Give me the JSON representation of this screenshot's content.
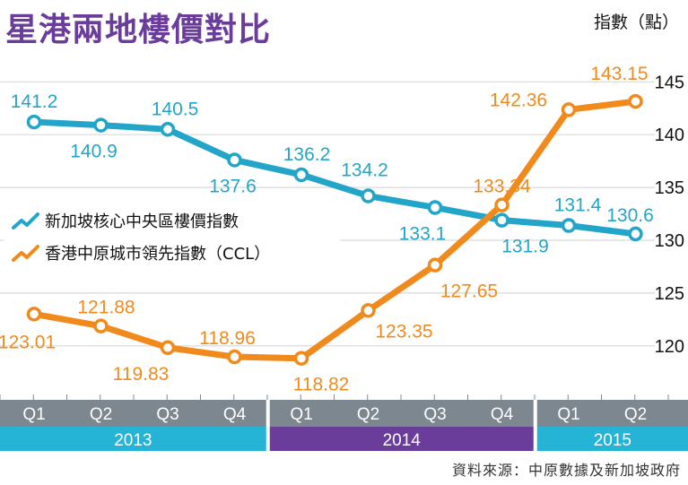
{
  "title": "星港兩地樓價對比",
  "unit_label": "指數（點）",
  "source": "資料來源：中原數據及新加坡政府",
  "colors": {
    "sg": "#22a5c9",
    "hk": "#f08a1d",
    "title": "#6a3d9a",
    "grid": "#d9d9d9",
    "quarter_bar": "#7d878f",
    "year_2013": "#25b4d6",
    "year_2014": "#6a3d9a",
    "year_2015": "#25b4d6"
  },
  "chart_data": {
    "type": "line",
    "categories": [
      "Q1",
      "Q2",
      "Q3",
      "Q4",
      "Q1",
      "Q2",
      "Q3",
      "Q4",
      "Q1",
      "Q2"
    ],
    "years": [
      {
        "label": "2013",
        "quarters": 4
      },
      {
        "label": "2014",
        "quarters": 4
      },
      {
        "label": "2015",
        "quarters": 2
      }
    ],
    "ylabel": "指數（點）",
    "ylim": [
      115,
      147
    ],
    "yticks": [
      120,
      125,
      130,
      135,
      140,
      145
    ],
    "grid": true,
    "legend_position": "left",
    "series": [
      {
        "name": "新加坡核心中央區樓價指數",
        "color": "#22a5c9",
        "values": [
          141.2,
          140.9,
          140.5,
          137.6,
          136.2,
          134.2,
          133.1,
          131.9,
          131.4,
          130.6
        ],
        "labels": [
          "141.2",
          "140.9",
          "140.5",
          "137.6",
          "136.2",
          "134.2",
          "133.1",
          "131.9",
          "131.4",
          "130.6"
        ]
      },
      {
        "name": "香港中原城市領先指數（CCL）",
        "color": "#f08a1d",
        "values": [
          123.01,
          121.88,
          119.83,
          118.96,
          118.82,
          123.35,
          127.65,
          133.34,
          142.36,
          143.15
        ],
        "labels": [
          "123.01",
          "121.88",
          "119.83",
          "118.96",
          "118.82",
          "123.35",
          "127.65",
          "133.34",
          "142.36",
          "143.15"
        ]
      }
    ]
  }
}
